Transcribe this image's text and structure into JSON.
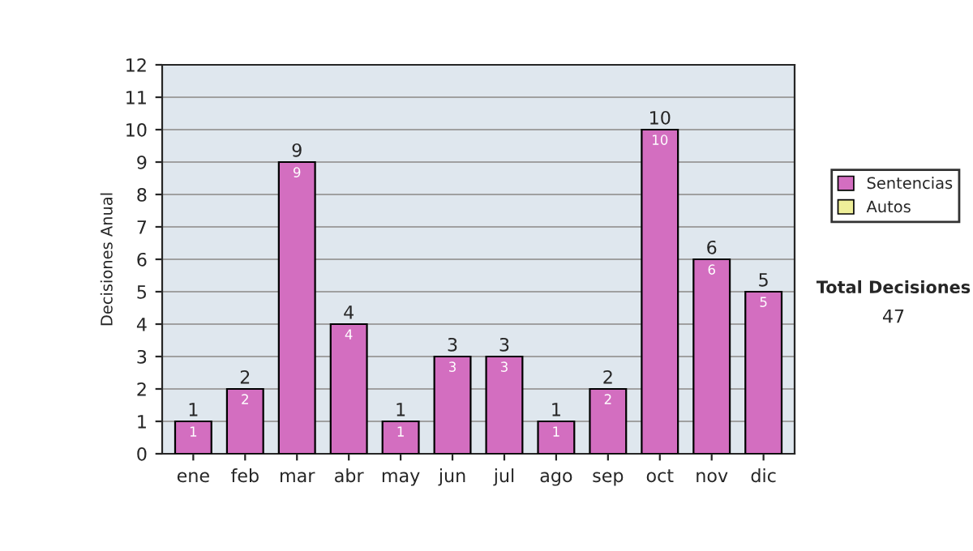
{
  "chart_data": {
    "type": "bar",
    "ylabel": "Decisiones Anual",
    "categories": [
      "ene",
      "feb",
      "mar",
      "abr",
      "may",
      "jun",
      "jul",
      "ago",
      "sep",
      "oct",
      "nov",
      "dic"
    ],
    "series": [
      {
        "name": "Sentencias",
        "color": "#d36ec0",
        "values": [
          1,
          2,
          9,
          4,
          1,
          3,
          3,
          1,
          2,
          10,
          6,
          5
        ]
      },
      {
        "name": "Autos",
        "color": "#eeee99",
        "values": [
          null,
          null,
          null,
          null,
          null,
          null,
          null,
          null,
          null,
          null,
          null,
          null
        ]
      }
    ],
    "totals": [
      "1",
      "2",
      "9",
      "4",
      "1",
      "3",
      "3",
      "1",
      "2",
      "10",
      "6",
      "5"
    ],
    "ylim": [
      0,
      12
    ],
    "yticks": [
      0,
      1,
      2,
      3,
      4,
      5,
      6,
      7,
      8,
      9,
      10,
      11,
      12
    ],
    "grid": "y",
    "legend": "right",
    "data_labels": true,
    "annotations": [
      "Total Decisiones",
      "47"
    ]
  }
}
